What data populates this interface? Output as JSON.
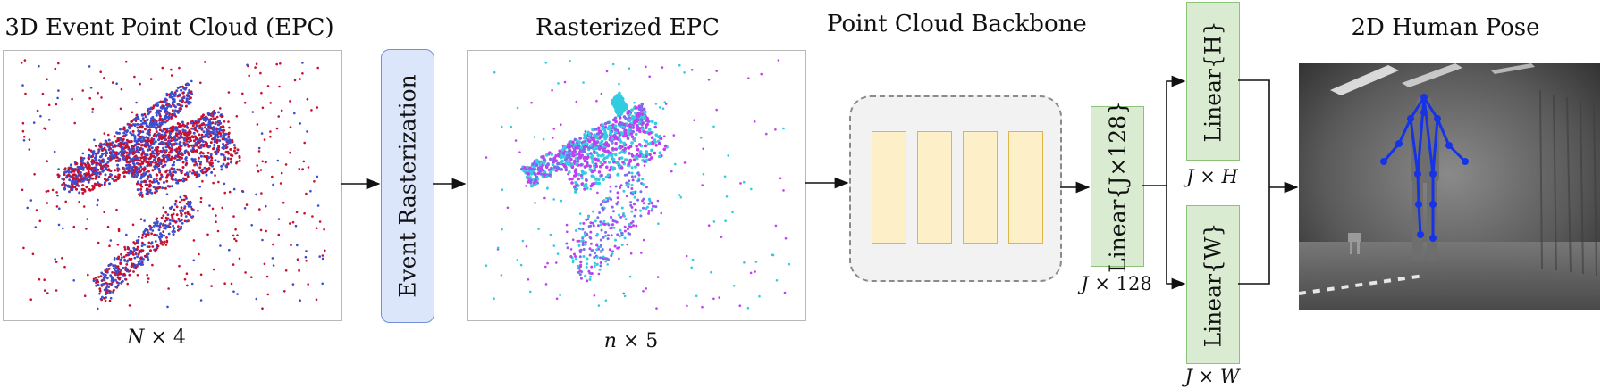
{
  "titles": {
    "epc": "3D Event Point Cloud (EPC)",
    "rasterized": "Rasterized EPC",
    "backbone": "Point Cloud Backbone",
    "pose": "2D Human Pose"
  },
  "dims": {
    "epc_n": "N",
    "epc_d": "4",
    "ras_n": "n",
    "ras_d": "5",
    "lin_j": "J",
    "lin_d": "128",
    "h_j": "J",
    "h_h": "H",
    "w_j": "J",
    "w_w": "W"
  },
  "labels": {
    "rasterization": "Event Rasterization",
    "linear_main": "Linear{J×128}",
    "linear_h": "Linear{H}",
    "linear_w": "Linear{W}"
  },
  "colors": {
    "red_points": "#c8102e",
    "blue_points": "#3a4fd0",
    "cyan_points": "#33cce0",
    "magenta_points": "#c040f0",
    "skeleton": "#1633e6"
  }
}
